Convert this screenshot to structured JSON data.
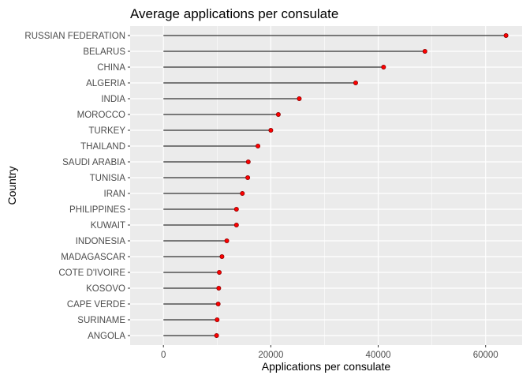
{
  "chart_data": {
    "type": "lollipop",
    "title": "Average applications per consulate",
    "xlabel": "Applications per consulate",
    "ylabel": "Country",
    "xlim": [
      -6200,
      66800
    ],
    "xticks": [
      0,
      20000,
      40000,
      60000
    ],
    "xtick_labels": [
      "0",
      "20000",
      "40000",
      "60000"
    ],
    "grid": true,
    "colors": {
      "panel": "#ebebeb",
      "grid": "#ffffff",
      "segment": "#000000",
      "point": "#ff0000",
      "point_outline": "#8b0000"
    },
    "categories": [
      "RUSSIAN FEDERATION",
      "BELARUS",
      "CHINA",
      "ALGERIA",
      "INDIA",
      "MOROCCO",
      "TURKEY",
      "THAILAND",
      "SAUDI ARABIA",
      "TUNISIA",
      "IRAN",
      "PHILIPPINES",
      "KUWAIT",
      "INDONESIA",
      "MADAGASCAR",
      "COTE D'IVOIRE",
      "KOSOVO",
      "CAPE VERDE",
      "SURINAME",
      "ANGOLA"
    ],
    "values": [
      63800,
      48700,
      41000,
      35800,
      25300,
      21400,
      20000,
      17600,
      15800,
      15700,
      14700,
      13600,
      13600,
      11800,
      10900,
      10400,
      10300,
      10200,
      10000,
      9900
    ]
  }
}
